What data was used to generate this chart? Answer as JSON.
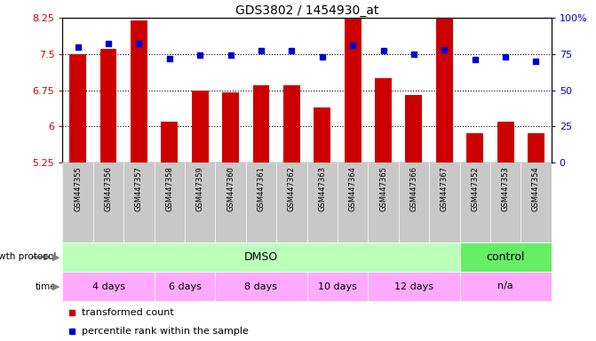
{
  "title": "GDS3802 / 1454930_at",
  "samples": [
    "GSM447355",
    "GSM447356",
    "GSM447357",
    "GSM447358",
    "GSM447359",
    "GSM447360",
    "GSM447361",
    "GSM447362",
    "GSM447363",
    "GSM447364",
    "GSM447365",
    "GSM447366",
    "GSM447367",
    "GSM447352",
    "GSM447353",
    "GSM447354"
  ],
  "bar_values": [
    7.5,
    7.6,
    8.2,
    6.1,
    6.75,
    6.7,
    6.85,
    6.85,
    6.4,
    8.6,
    7.0,
    6.65,
    8.5,
    5.85,
    6.1,
    5.85
  ],
  "dot_values": [
    80,
    82,
    82,
    72,
    74,
    74,
    77,
    77,
    73,
    81,
    77,
    75,
    78,
    71,
    73,
    70
  ],
  "ylim_left": [
    5.25,
    8.25
  ],
  "ylim_right": [
    0,
    100
  ],
  "yticks_left": [
    5.25,
    6.0,
    6.75,
    7.5,
    8.25
  ],
  "yticks_left_labels": [
    "5.25",
    "6",
    "6.75",
    "7.5",
    "8.25"
  ],
  "yticks_right": [
    0,
    25,
    50,
    75,
    100
  ],
  "yticks_right_labels": [
    "0",
    "25",
    "50",
    "75",
    "100%"
  ],
  "bar_color": "#cc0000",
  "dot_color": "#0000cc",
  "xticklabel_bg": "#c8c8c8",
  "dmso_color": "#bbffbb",
  "control_color": "#66ee66",
  "time_color": "#ffaaff",
  "time_segs": [
    {
      "text": "4 days",
      "start": 0,
      "end": 2
    },
    {
      "text": "6 days",
      "start": 3,
      "end": 4
    },
    {
      "text": "8 days",
      "start": 5,
      "end": 7
    },
    {
      "text": "10 days",
      "start": 8,
      "end": 9
    },
    {
      "text": "12 days",
      "start": 10,
      "end": 12
    },
    {
      "text": "n/a",
      "start": 13,
      "end": 15
    }
  ]
}
